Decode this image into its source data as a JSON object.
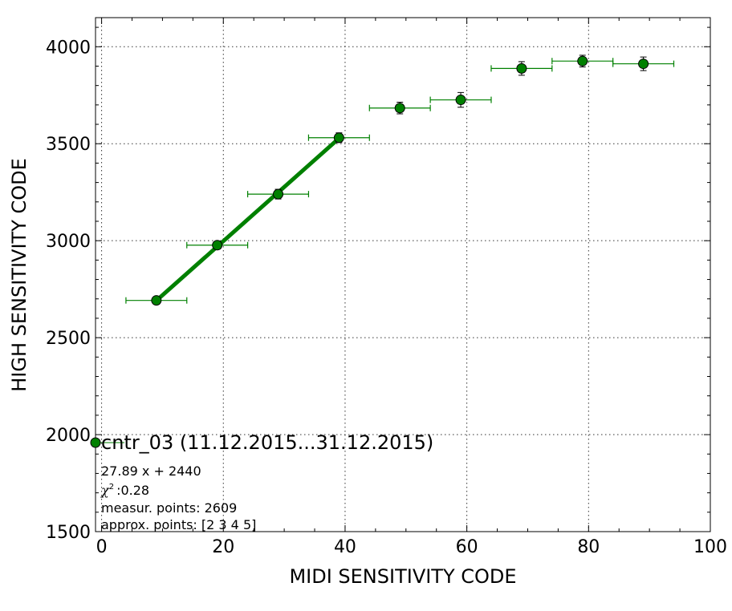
{
  "chart_data": {
    "type": "scatter",
    "xlabel": "MIDI SENSITIVITY CODE",
    "ylabel": "HIGH SENSITIVITY CODE",
    "xlim": [
      -1,
      100
    ],
    "ylim": [
      1500,
      4150
    ],
    "xticks": [
      0,
      20,
      40,
      60,
      80,
      100
    ],
    "yticks": [
      1500,
      2000,
      2500,
      3000,
      3500,
      4000
    ],
    "xtick_labels": [
      "0",
      "20",
      "40",
      "60",
      "80",
      "100"
    ],
    "ytick_labels": [
      "1500",
      "2000",
      "2500",
      "3000",
      "3500",
      "4000"
    ],
    "grid": true,
    "series": [
      {
        "name": "cntr_03 (11.12.2015...31.12.2015)",
        "color": "#008000",
        "points": [
          {
            "x": 9,
            "y": 2692,
            "xerr": 5,
            "yerr": 12
          },
          {
            "x": 19,
            "y": 2977,
            "xerr": 5,
            "yerr": 15
          },
          {
            "x": 29,
            "y": 3240,
            "xerr": 5,
            "yerr": 25
          },
          {
            "x": 39,
            "y": 3531,
            "xerr": 5,
            "yerr": 25
          },
          {
            "x": 49,
            "y": 3684,
            "xerr": 5,
            "yerr": 30
          },
          {
            "x": 59,
            "y": 3726,
            "xerr": 5,
            "yerr": 38
          },
          {
            "x": 69,
            "y": 3888,
            "xerr": 5,
            "yerr": 35
          },
          {
            "x": 79,
            "y": 3926,
            "xerr": 5,
            "yerr": 30
          },
          {
            "x": 89,
            "y": 3912,
            "xerr": 5,
            "yerr": 35
          }
        ]
      }
    ],
    "fit": {
      "color": "#008000",
      "x_start": 9,
      "x_end": 39,
      "slope": 27.89,
      "intercept": 2440
    },
    "legend": {
      "label": "cntr_03 (11.12.2015...31.12.2015)",
      "placement": "lower-left"
    },
    "annotations": [
      "27.89 x + 2440",
      ":0.28",
      "measur. points: 2609",
      "approx. points: [2 3 4 5]"
    ],
    "chi_symbol": "χ",
    "chi_superscript": "2"
  }
}
